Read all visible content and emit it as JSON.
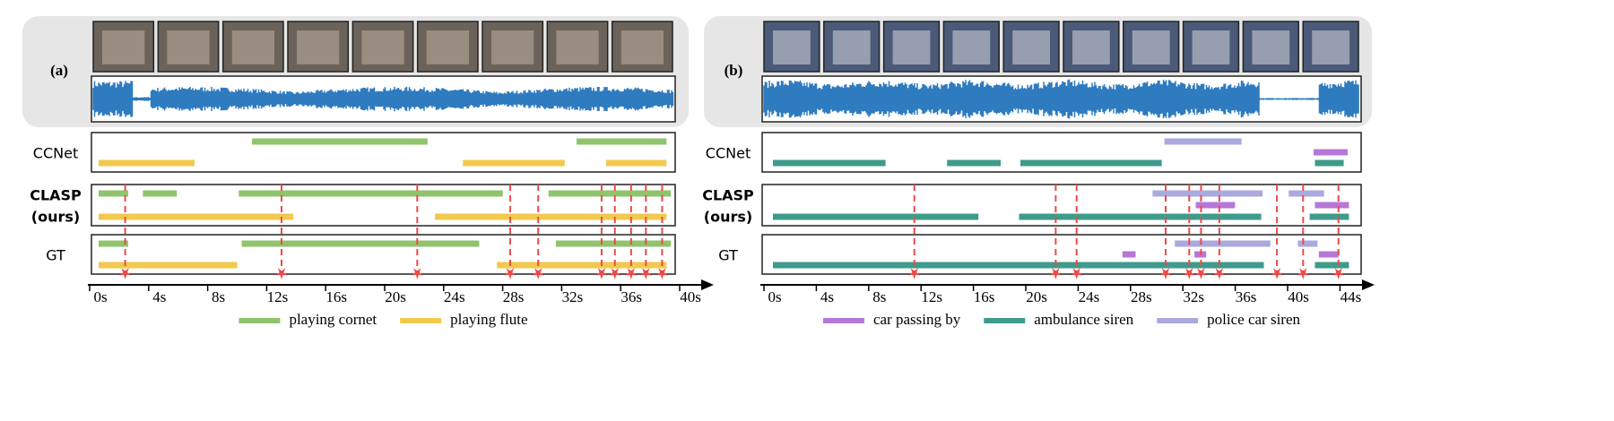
{
  "chart_data": [
    {
      "type": "timeline",
      "panel": "(a)",
      "series": [
        {
          "name": "playing cornet",
          "color": "#8fc46c"
        },
        {
          "name": "playing flute",
          "color": "#f2c94c"
        }
      ],
      "rows": [
        {
          "label": [
            "CCNet"
          ],
          "bold": false,
          "segments": [
            [
              [
                10.4,
                22.3
              ],
              [
                32.4,
                38.5
              ]
            ],
            [
              [
                0,
                6.5
              ],
              [
                24.7,
                31.6
              ],
              [
                34.4,
                38.5
              ]
            ]
          ]
        },
        {
          "label": [
            "CLASP",
            "(ours)"
          ],
          "bold": true,
          "segments": [
            [
              [
                0,
                2
              ],
              [
                3,
                5.3
              ],
              [
                9.5,
                27.4
              ],
              [
                30.5,
                38.8
              ]
            ],
            [
              [
                0,
                13.2
              ],
              [
                22.8,
                38.5
              ]
            ]
          ]
        },
        {
          "label": [
            "GT"
          ],
          "bold": false,
          "segments": [
            [
              [
                0,
                2
              ],
              [
                9.7,
                25.8
              ],
              [
                31,
                38.8
              ]
            ],
            [
              [
                0,
                9.4
              ],
              [
                27,
                38.5
              ]
            ]
          ]
        }
      ],
      "boundaries": [
        1.8,
        12.4,
        21.6,
        27.9,
        29.8,
        34.1,
        35.0,
        36.1,
        37.1,
        38.2
      ],
      "boundary_color": "#f04848",
      "xlim": [
        0,
        40
      ],
      "xticks": [
        {
          "value": 0,
          "label": "0s"
        },
        {
          "value": 4,
          "label": "4s"
        },
        {
          "value": 8,
          "label": "8s"
        },
        {
          "value": 12,
          "label": "12s"
        },
        {
          "value": 16,
          "label": "16s"
        },
        {
          "value": 20,
          "label": "20s"
        },
        {
          "value": 24,
          "label": "24s"
        },
        {
          "value": 28,
          "label": "28s"
        },
        {
          "value": 32,
          "label": "32s"
        },
        {
          "value": 36,
          "label": "36s"
        },
        {
          "value": 40,
          "label": "40s"
        }
      ]
    },
    {
      "type": "timeline",
      "panel": "(b)",
      "series": [
        {
          "name": "car passing by",
          "color": "#b777d8"
        },
        {
          "name": "ambulance siren",
          "color": "#3f9b8b"
        },
        {
          "name": "police car siren",
          "color": "#aaaadf"
        }
      ],
      "rows": [
        {
          "label": [
            "CCNet"
          ],
          "bold": false,
          "segments": [
            [
              [
                41.3,
                43.9
              ]
            ],
            [
              [
                0,
                8.6
              ],
              [
                13.3,
                17.4
              ],
              [
                18.9,
                29.7
              ],
              [
                41.4,
                43.6
              ]
            ],
            [
              [
                29.9,
                35.8
              ]
            ]
          ]
        },
        {
          "label": [
            "CLASP",
            "(ours)"
          ],
          "bold": true,
          "segments": [
            [
              [
                32.3,
                35.3
              ],
              [
                41.4,
                44
              ]
            ],
            [
              [
                0,
                15.7
              ],
              [
                18.8,
                37.3
              ],
              [
                41,
                44
              ]
            ],
            [
              [
                29,
                37.4
              ],
              [
                39.4,
                42.1
              ]
            ]
          ]
        },
        {
          "label": [
            "GT"
          ],
          "bold": false,
          "segments": [
            [
              [
                26.7,
                27.7
              ],
              [
                32.2,
                33.1
              ],
              [
                41.7,
                43.2
              ]
            ],
            [
              [
                0,
                37.5
              ],
              [
                41.4,
                44
              ]
            ],
            [
              [
                30.7,
                38
              ],
              [
                40.1,
                41.6
              ]
            ]
          ]
        }
      ],
      "boundaries": [
        10.8,
        21.6,
        23.2,
        30,
        31.8,
        32.7,
        34.1,
        38.5,
        40.5,
        43.2
      ],
      "boundary_color": "#f04848",
      "xlim": [
        0,
        44
      ],
      "xticks": [
        {
          "value": 0,
          "label": "0s"
        },
        {
          "value": 4,
          "label": "4s"
        },
        {
          "value": 8,
          "label": "8s"
        },
        {
          "value": 12,
          "label": "12s"
        },
        {
          "value": 16,
          "label": "16s"
        },
        {
          "value": 20,
          "label": "20s"
        },
        {
          "value": 24,
          "label": "24s"
        },
        {
          "value": 28,
          "label": "28s"
        },
        {
          "value": 32,
          "label": "32s"
        },
        {
          "value": 36,
          "label": "36s"
        },
        {
          "value": 40,
          "label": "40s"
        },
        {
          "value": 44,
          "label": "44s"
        }
      ]
    }
  ]
}
